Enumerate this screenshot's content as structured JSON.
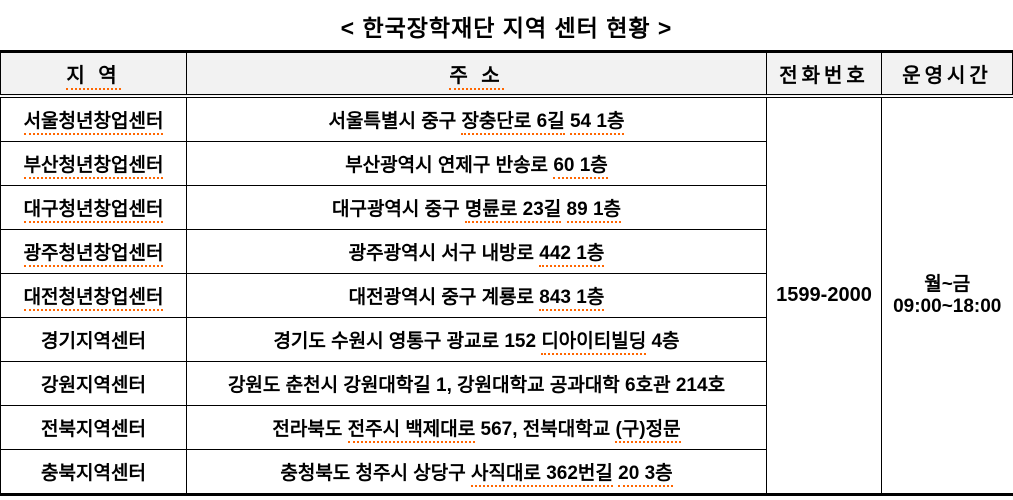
{
  "title": "< 한국장학재단 지역 센터 현황 >",
  "table": {
    "headers": {
      "region": "지 역",
      "address": "주 소",
      "phone": "전화번호",
      "hours": "운영시간"
    },
    "phone": "1599-2000",
    "hours_line1": "월~금",
    "hours_line2": "09:00~18:00",
    "rows": [
      {
        "region": "서울청년창업센터",
        "region_misspelled": true,
        "address": [
          {
            "text": "서울특별시 중구 ",
            "misspelled": false
          },
          {
            "text": "장충단로 6길",
            "misspelled": true
          },
          {
            "text": " ",
            "misspelled": false
          },
          {
            "text": "54 1층",
            "misspelled": true
          }
        ]
      },
      {
        "region": "부산청년창업센터",
        "region_misspelled": true,
        "address": [
          {
            "text": "부산광역시 연제구 반송로 ",
            "misspelled": false
          },
          {
            "text": "60 1층",
            "misspelled": true
          }
        ]
      },
      {
        "region": "대구청년창업센터",
        "region_misspelled": true,
        "address": [
          {
            "text": "대구광역시 중구 ",
            "misspelled": false
          },
          {
            "text": "명륜로 23길",
            "misspelled": true
          },
          {
            "text": " ",
            "misspelled": false
          },
          {
            "text": "89 1층",
            "misspelled": true
          }
        ]
      },
      {
        "region": "광주청년창업센터",
        "region_misspelled": true,
        "address": [
          {
            "text": "광주광역시 서구 내방로 ",
            "misspelled": false
          },
          {
            "text": "442 1층",
            "misspelled": true
          }
        ]
      },
      {
        "region": "대전청년창업센터",
        "region_misspelled": true,
        "address": [
          {
            "text": "대전광역시 중구 계룡로 ",
            "misspelled": false
          },
          {
            "text": "843 1층",
            "misspelled": true
          }
        ]
      },
      {
        "region": "경기지역센터",
        "region_misspelled": false,
        "address": [
          {
            "text": "경기도 수원시 영통구 광교로 152 ",
            "misspelled": false
          },
          {
            "text": "디아이티빌딩",
            "misspelled": true
          },
          {
            "text": " 4층",
            "misspelled": false
          }
        ]
      },
      {
        "region": "강원지역센터",
        "region_misspelled": false,
        "address": [
          {
            "text": "강원도 춘천시 강원대학길 1, 강원대학교 공과대학 6호관 214호",
            "misspelled": false
          }
        ]
      },
      {
        "region": "전북지역센터",
        "region_misspelled": false,
        "address": [
          {
            "text": "전라북도 ",
            "misspelled": false
          },
          {
            "text": "전주시 백제대로",
            "misspelled": true
          },
          {
            "text": " 567, 전북대학교 ",
            "misspelled": false
          },
          {
            "text": "(구)정문",
            "misspelled": true
          }
        ]
      },
      {
        "region": "충북지역센터",
        "region_misspelled": false,
        "address": [
          {
            "text": "충청북도 청주시 상당구 ",
            "misspelled": false
          },
          {
            "text": "사직대로 362번길",
            "misspelled": true
          },
          {
            "text": " ",
            "misspelled": false
          },
          {
            "text": "20 3층",
            "misspelled": true
          }
        ]
      }
    ]
  },
  "colors": {
    "border": "#000000",
    "header_background": "#f2f2f2",
    "spellcheck_underline": "#ff6600"
  }
}
